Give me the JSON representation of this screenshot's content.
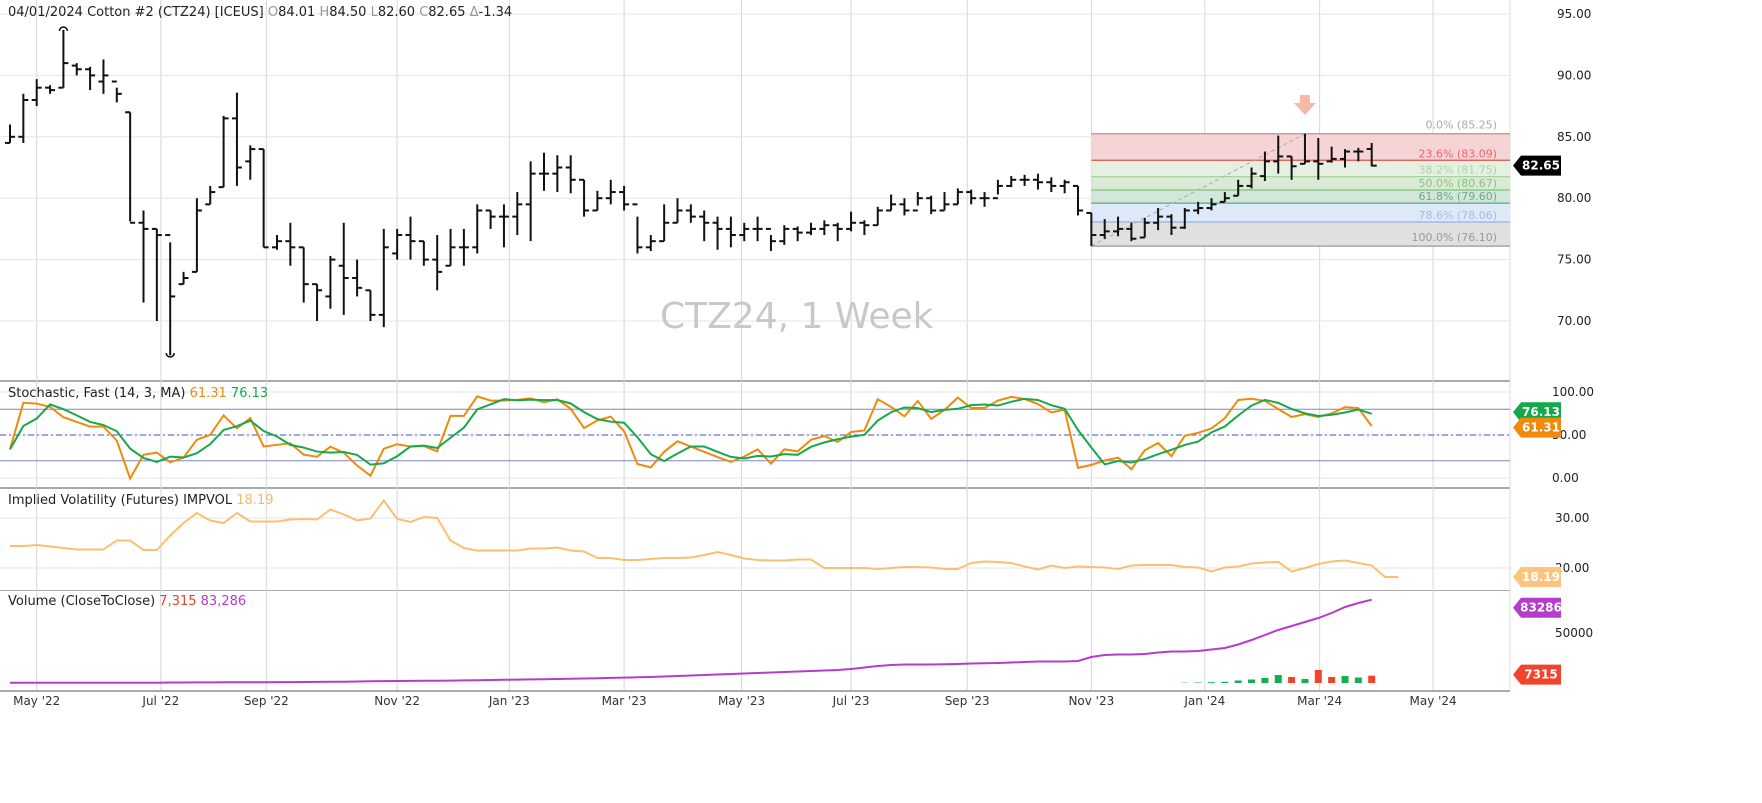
{
  "header": {
    "date": "04/01/2024",
    "name": "Cotton #2 (CTZ24) [ICEUS]",
    "open_label": "O",
    "open": "84.01",
    "high_label": "H",
    "high": "84.50",
    "low_label": "L",
    "low": "82.60",
    "close_label": "C",
    "close": "82.65",
    "change_label": "Δ",
    "change": "-1.34"
  },
  "watermark": "CTZ24, 1 Week",
  "chart_data": [
    {
      "type": "ohlc",
      "title": "Cotton #2 (CTZ24) weekly",
      "ylim": [
        66,
        96
      ],
      "yticks": [
        "95.00",
        "90.00",
        "85.00",
        "80.00",
        "75.00",
        "70.00"
      ],
      "last_price": "82.65",
      "bars": [
        [
          84.5,
          86,
          84.5,
          85
        ],
        [
          85,
          88.5,
          84.5,
          88
        ],
        [
          88,
          89.7,
          87.5,
          89
        ],
        [
          89,
          89.2,
          88.5,
          88.8
        ],
        [
          89,
          93.7,
          89,
          91
        ],
        [
          90.8,
          91,
          90,
          90.5
        ],
        [
          90.5,
          90.7,
          88.8,
          90
        ],
        [
          89.5,
          91.3,
          88.5,
          90
        ],
        [
          89.5,
          89,
          87.8,
          88.5
        ],
        [
          87,
          87,
          78.1,
          78
        ],
        [
          78,
          79,
          71.5,
          77.5
        ],
        [
          77.5,
          77.5,
          70,
          77
        ],
        [
          77,
          76.4,
          67.2,
          72
        ],
        [
          73,
          74,
          73,
          73.5
        ],
        [
          74,
          80,
          74,
          79
        ],
        [
          79.5,
          81,
          79.5,
          80.5
        ],
        [
          80.9,
          86.7,
          80.9,
          86.5
        ],
        [
          86.5,
          88.6,
          81,
          82.5
        ],
        [
          83,
          84.3,
          81.5,
          84
        ],
        [
          84,
          84,
          76,
          76
        ],
        [
          76,
          77,
          75.8,
          76.5
        ],
        [
          76.5,
          78,
          74.5,
          76
        ],
        [
          76,
          76,
          71.5,
          73
        ],
        [
          73,
          73,
          70,
          72.5
        ],
        [
          72,
          75.3,
          71,
          75
        ],
        [
          74.5,
          78,
          70.5,
          73.5
        ],
        [
          73.5,
          75,
          72,
          72.7
        ],
        [
          72.5,
          72.5,
          70,
          70.5
        ],
        [
          70.5,
          77.5,
          69.5,
          76
        ],
        [
          75.5,
          77.5,
          75,
          77
        ],
        [
          77,
          78.5,
          75,
          76.5
        ],
        [
          76.5,
          76.5,
          74.5,
          75
        ],
        [
          75,
          77,
          72.5,
          74
        ],
        [
          74.5,
          77.5,
          74.5,
          76
        ],
        [
          76,
          77.5,
          74.5,
          76
        ],
        [
          76,
          79.5,
          75.5,
          79
        ],
        [
          79,
          79,
          77.5,
          78.5
        ],
        [
          78.5,
          79.5,
          76,
          78.5
        ],
        [
          78.5,
          80.5,
          77,
          79.5
        ],
        [
          79.5,
          83,
          76.5,
          82
        ],
        [
          82,
          83.7,
          80.6,
          82
        ],
        [
          82,
          83.5,
          80.5,
          82.5
        ],
        [
          82.5,
          83.5,
          80.4,
          81.5
        ],
        [
          81.5,
          81.5,
          78.5,
          79
        ],
        [
          79,
          80.6,
          79,
          80
        ],
        [
          80,
          81.5,
          79.5,
          80.5
        ],
        [
          80.5,
          81,
          79,
          79.5
        ],
        [
          79.5,
          78.5,
          75.5,
          76
        ],
        [
          76,
          77,
          75.7,
          76.5
        ],
        [
          76.5,
          79.5,
          76.5,
          78
        ],
        [
          78,
          80,
          78,
          79
        ],
        [
          79,
          79.5,
          78,
          78.5
        ],
        [
          78.5,
          79,
          76.5,
          78
        ],
        [
          78,
          78.5,
          75.8,
          77.5
        ],
        [
          77.5,
          78.5,
          76,
          77
        ],
        [
          77,
          78,
          76.5,
          77.5
        ],
        [
          77.5,
          78.5,
          76.5,
          77.5
        ],
        [
          77.5,
          77,
          75.7,
          76.5
        ],
        [
          76.5,
          77.8,
          76.2,
          77.5
        ],
        [
          77.5,
          77.7,
          76.5,
          77.2
        ],
        [
          77.2,
          78,
          77,
          77.5
        ],
        [
          77.5,
          78.2,
          77,
          77.8
        ],
        [
          77.8,
          78,
          76.5,
          77.5
        ],
        [
          77.5,
          78.9,
          77.3,
          78
        ],
        [
          78,
          78.2,
          77,
          77.8
        ],
        [
          77.8,
          79.3,
          77.8,
          79
        ],
        [
          79,
          80.3,
          79,
          79.5
        ],
        [
          79.5,
          80,
          78.6,
          79
        ],
        [
          79,
          80.5,
          79.4,
          80
        ],
        [
          80,
          80.2,
          78.7,
          79
        ],
        [
          79,
          80.5,
          79,
          79.5
        ],
        [
          79.5,
          80.8,
          79.5,
          80.5
        ],
        [
          80.5,
          80.7,
          79.5,
          80
        ],
        [
          80,
          80.5,
          79.3,
          80
        ],
        [
          80,
          81.5,
          80.3,
          81
        ],
        [
          81,
          81.8,
          80.9,
          81.5
        ],
        [
          81.5,
          81.9,
          81,
          81.5
        ],
        [
          81.5,
          82,
          80.7,
          81.3
        ],
        [
          81.3,
          81.7,
          80.5,
          81
        ],
        [
          81,
          81.5,
          80.4,
          81.3
        ],
        [
          81,
          81,
          78.6,
          79
        ],
        [
          78.8,
          78.8,
          76.1,
          77
        ],
        [
          77,
          78.3,
          76.7,
          77.3
        ],
        [
          77.3,
          78.5,
          76.9,
          77.5
        ],
        [
          77.5,
          78,
          76.5,
          76.7
        ],
        [
          76.8,
          78.4,
          76.8,
          78
        ],
        [
          78,
          79.2,
          77.4,
          78.5
        ],
        [
          78.5,
          78.7,
          77,
          77.6
        ],
        [
          77.6,
          79.2,
          77.5,
          79
        ],
        [
          79,
          79.7,
          78.7,
          79.2
        ],
        [
          79.2,
          80,
          79,
          79.5
        ],
        [
          79.7,
          80.5,
          79.7,
          80
        ],
        [
          80.2,
          81.5,
          80.2,
          81
        ],
        [
          81,
          82.5,
          80.8,
          82
        ],
        [
          81.8,
          83.8,
          81.4,
          83
        ],
        [
          83,
          85.1,
          82,
          83.4
        ],
        [
          83.4,
          83.4,
          81.5,
          82.6
        ],
        [
          82.8,
          85.25,
          82.8,
          83
        ],
        [
          83,
          84.9,
          81.5,
          82.8
        ],
        [
          83,
          84.2,
          82.9,
          83.2
        ],
        [
          83.2,
          84,
          82.5,
          83.8
        ],
        [
          83.8,
          84.1,
          83,
          83.8
        ],
        [
          84.01,
          84.5,
          82.6,
          82.65
        ]
      ],
      "fibonacci": {
        "levels": [
          {
            "label": "0.0% (85.25)",
            "value": 85.25
          },
          {
            "label": "23.6% (83.09)",
            "value": 83.09
          },
          {
            "label": "38.2% (81.75)",
            "value": 81.75
          },
          {
            "label": "50.0% (80.67)",
            "value": 80.67
          },
          {
            "label": "61.8% (79.60)",
            "value": 79.6
          },
          {
            "label": "78.6% (78.06)",
            "value": 78.06
          },
          {
            "label": "100.0% (76.10)",
            "value": 76.1
          }
        ],
        "start_bar": 81,
        "end_bar": 97
      },
      "x_labels": [
        {
          "label": "May '22",
          "bar": 2
        },
        {
          "label": "Jul '22",
          "bar": 11.3
        },
        {
          "label": "Sep '22",
          "bar": 19.2
        },
        {
          "label": "Nov '22",
          "bar": 29
        },
        {
          "label": "Jan '23",
          "bar": 37.4
        },
        {
          "label": "Mar '23",
          "bar": 46
        },
        {
          "label": "May '23",
          "bar": 54.8
        },
        {
          "label": "Jul '23",
          "bar": 63
        },
        {
          "label": "Sep '23",
          "bar": 71.7
        },
        {
          "label": "Nov '23",
          "bar": 81
        },
        {
          "label": "Jan '24",
          "bar": 89.5
        },
        {
          "label": "Mar '24",
          "bar": 98.1
        },
        {
          "label": "May '24",
          "bar": 106.6
        }
      ]
    },
    {
      "type": "line",
      "title": "Stochastic, Fast",
      "params": "(14, 3, MA)",
      "k_value": "61.31",
      "d_value": "76.13",
      "ylim": [
        0,
        100
      ],
      "yticks": [
        "100.00",
        "50.00",
        "0.00"
      ],
      "bands": [
        20,
        50,
        80
      ],
      "k_period": 14,
      "d_period": 3,
      "colors": {
        "k": "#f08a0c",
        "d": "#18a84a"
      }
    },
    {
      "type": "line",
      "title": "Implied Volatility (Futures)",
      "code": "IMPVOL",
      "value": "18.19",
      "ylim": [
        16,
        35
      ],
      "yticks": [
        "30.00",
        "20.00"
      ],
      "values": [
        24.4,
        24.4,
        24.6,
        24.3,
        24,
        23.7,
        23.7,
        23.7,
        25.5,
        25.5,
        23.6,
        23.6,
        26.5,
        29,
        31,
        29.5,
        29,
        31,
        29.3,
        29.3,
        29.3,
        29.7,
        29.8,
        29.7,
        31.7,
        30.7,
        29.5,
        29.9,
        33.5,
        29.8,
        29.2,
        30.2,
        30,
        25.5,
        24,
        23.5,
        23.5,
        23.5,
        23.5,
        23.9,
        23.9,
        24.1,
        23.5,
        23.3,
        22,
        22,
        21.6,
        21.6,
        21.8,
        22,
        22,
        22.1,
        22.6,
        23.2,
        22.6,
        21.9,
        21.6,
        21.5,
        21.5,
        21.7,
        21.7,
        20,
        20,
        20,
        20,
        19.8,
        20,
        20.2,
        20.2,
        20.1,
        19.8,
        19.8,
        21,
        21.3,
        21.2,
        21,
        20.3,
        19.7,
        20.5,
        20,
        20.3,
        20.2,
        20.1,
        19.8,
        20.5,
        20.6,
        20.6,
        20.6,
        20.2,
        20.1,
        19.3,
        20.1,
        20.3,
        20.9,
        21.1,
        21.2,
        19.3,
        20,
        20.8,
        21.3,
        21.5,
        21,
        20.5,
        18.2,
        18.19
      ]
    },
    {
      "type": "bar+line",
      "title": "Volume",
      "mode": "(CloseToClose)",
      "volume_value": "7,315",
      "oi_value": "83,286",
      "volume_badge": "7315",
      "oi_badge": "83286",
      "ylim": [
        0,
        90000
      ],
      "yticks": [
        "50000"
      ],
      "volume": [
        0,
        0,
        0,
        0,
        0,
        0,
        0,
        0,
        0,
        0,
        0,
        0,
        0,
        0,
        0,
        0,
        0,
        0,
        0,
        0,
        0,
        0,
        0,
        0,
        0,
        0,
        0,
        0,
        0,
        0,
        0,
        0,
        0,
        0,
        0,
        0,
        0,
        0,
        0,
        0,
        0,
        0,
        0,
        0,
        0,
        0,
        0,
        0,
        0,
        0,
        0,
        0,
        0,
        0,
        0,
        0,
        0,
        0,
        0,
        0,
        0,
        0,
        0,
        0,
        0,
        0,
        0,
        0,
        0,
        0,
        0,
        0,
        0,
        0,
        0,
        0,
        0,
        0,
        0,
        0,
        0,
        0,
        0,
        0,
        0,
        0,
        0,
        0,
        300,
        500,
        800,
        1200,
        2500,
        3500,
        5000,
        8000,
        6000,
        4000,
        13000,
        6000,
        7000,
        5500,
        7315
      ],
      "volume_up": [
        0,
        0,
        0,
        0,
        0,
        0,
        0,
        0,
        0,
        0,
        0,
        0,
        0,
        0,
        0,
        0,
        0,
        0,
        0,
        0,
        0,
        0,
        0,
        0,
        0,
        0,
        0,
        0,
        0,
        0,
        0,
        0,
        0,
        0,
        0,
        0,
        0,
        0,
        0,
        0,
        0,
        0,
        0,
        0,
        0,
        0,
        0,
        0,
        0,
        0,
        0,
        0,
        0,
        0,
        0,
        0,
        0,
        0,
        0,
        0,
        0,
        0,
        0,
        0,
        0,
        0,
        0,
        0,
        0,
        0,
        0,
        0,
        0,
        0,
        0,
        0,
        0,
        0,
        0,
        0,
        0,
        0,
        0,
        0,
        0,
        0,
        0,
        0,
        1,
        1,
        1,
        1,
        1,
        1,
        1,
        1,
        0,
        1,
        0,
        0,
        1,
        1,
        0
      ],
      "open_interest": [
        300,
        300,
        300,
        300,
        300,
        300,
        300,
        300,
        300,
        300,
        300,
        300,
        500,
        500,
        600,
        600,
        700,
        700,
        800,
        800,
        900,
        900,
        1000,
        1100,
        1200,
        1300,
        1500,
        1700,
        1900,
        2000,
        2100,
        2200,
        2300,
        2400,
        2600,
        2800,
        3000,
        3200,
        3400,
        3600,
        3800,
        4000,
        4200,
        4500,
        4800,
        5100,
        5400,
        5700,
        6000,
        6500,
        7000,
        7500,
        8000,
        8500,
        9000,
        9500,
        10000,
        10500,
        11000,
        11500,
        12000,
        12500,
        13000,
        14000,
        15500,
        17000,
        18000,
        18500,
        18500,
        18500,
        18700,
        19000,
        19500,
        19800,
        20000,
        20500,
        21000,
        21500,
        21500,
        21500,
        22000,
        26000,
        28000,
        28500,
        28500,
        29000,
        30500,
        31500,
        31500,
        32000,
        33500,
        35000,
        38500,
        43000,
        48000,
        53000,
        57000,
        61000,
        65000,
        70000,
        76000,
        80000,
        83286
      ]
    }
  ]
}
